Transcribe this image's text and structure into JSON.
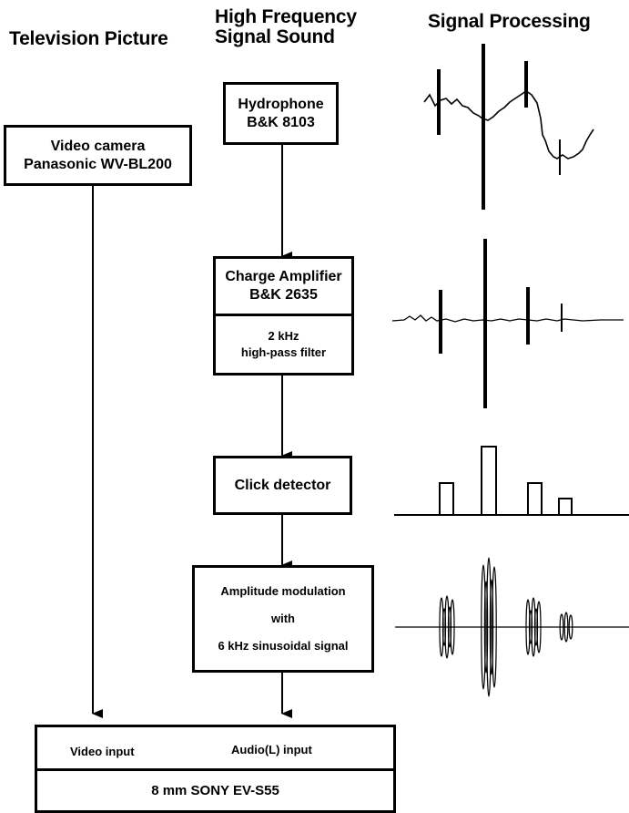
{
  "headers": {
    "television": "Television Picture",
    "high_freq_line1": "High Frequency",
    "high_freq_line2": "Signal Sound",
    "signal_processing": "Signal Processing"
  },
  "boxes": {
    "video_camera": {
      "line1": "Video camera",
      "line2": "Panasonic WV-BL200"
    },
    "hydrophone": {
      "line1": "Hydrophone",
      "line2": "B&K 8103"
    },
    "charge_amplifier": {
      "line1": "Charge Amplifier",
      "line2": "B&K 2635"
    },
    "filter": {
      "line1": "2 kHz",
      "line2": "high-pass filter"
    },
    "click_detector": {
      "label": "Click detector"
    },
    "amplitude_modulation": {
      "line1": "Amplitude modulation",
      "line2": "with",
      "line3": "6 kHz sinusoidal signal"
    },
    "recorder": {
      "video_input": "Video input",
      "audio_input": "Audio(L) input",
      "model": "8 mm SONY  EV-S55"
    }
  },
  "click_amplitudes": [
    0.45,
    1.0,
    0.45,
    0.22
  ]
}
